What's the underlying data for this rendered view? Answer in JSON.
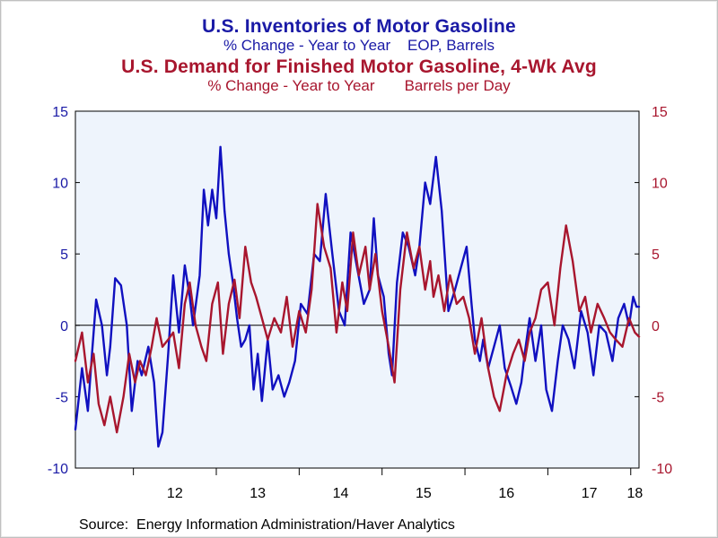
{
  "titles": {
    "title1": "U.S. Inventories of Motor Gasoline",
    "subtitle1": "% Change - Year to Year    EOP, Barrels",
    "title2": "U.S. Demand for Finished Motor Gasoline, 4-Wk Avg",
    "subtitle2": "% Change - Year to Year       Barrels per Day"
  },
  "source": "Source:  Energy Information Administration/Haver Analytics",
  "colors": {
    "inventories": "#1010c0",
    "demand": "#a8162e",
    "plot_background": "#eef4fc",
    "left_axis_text": "#1a1aa6",
    "right_axis_text": "#a8162e"
  },
  "chart_data": {
    "type": "line",
    "x_axis": {
      "tick_labels": [
        "12",
        "13",
        "14",
        "15",
        "16",
        "17",
        "18"
      ],
      "range": [
        2011.3,
        2018.1
      ]
    },
    "y_left": {
      "range": [
        -10,
        15
      ],
      "ticks": [
        "15",
        "10",
        "5",
        "0",
        "-5",
        "-10"
      ]
    },
    "y_right": {
      "range": [
        -10,
        15
      ],
      "ticks": [
        "15",
        "10",
        "5",
        "0",
        "-5",
        "-10"
      ]
    },
    "grid": false,
    "zero_line": true,
    "series": [
      {
        "name": "U.S. Inventories of Motor Gasoline",
        "axis": "left",
        "x": [
          2011.3,
          2011.38,
          2011.45,
          2011.5,
          2011.55,
          2011.62,
          2011.68,
          2011.72,
          2011.78,
          2011.85,
          2011.92,
          2011.98,
          2012.05,
          2012.1,
          2012.18,
          2012.25,
          2012.3,
          2012.35,
          2012.42,
          2012.48,
          2012.55,
          2012.62,
          2012.68,
          2012.72,
          2012.8,
          2012.85,
          2012.9,
          2012.95,
          2013.0,
          2013.05,
          2013.1,
          2013.15,
          2013.2,
          2013.25,
          2013.3,
          2013.35,
          2013.4,
          2013.45,
          2013.5,
          2013.55,
          2013.62,
          2013.68,
          2013.75,
          2013.82,
          2013.88,
          2013.95,
          2014.02,
          2014.1,
          2014.18,
          2014.25,
          2014.32,
          2014.4,
          2014.48,
          2014.55,
          2014.62,
          2014.7,
          2014.78,
          2014.85,
          2014.9,
          2014.95,
          2015.02,
          2015.08,
          2015.12,
          2015.18,
          2015.25,
          2015.32,
          2015.4,
          2015.45,
          2015.52,
          2015.58,
          2015.65,
          2015.72,
          2015.8,
          2015.88,
          2015.95,
          2016.02,
          2016.08,
          2016.12,
          2016.18,
          2016.22,
          2016.28,
          2016.35,
          2016.42,
          2016.48,
          2016.55,
          2016.62,
          2016.68,
          2016.72,
          2016.78,
          2016.85,
          2016.92,
          2016.98,
          2017.05,
          2017.12,
          2017.18,
          2017.25,
          2017.32,
          2017.4,
          2017.48,
          2017.55,
          2017.62,
          2017.7,
          2017.78,
          2017.85,
          2017.92,
          2017.98,
          2018.03,
          2018.07,
          2018.1
        ],
        "y": [
          -7.3,
          -3.0,
          -6.0,
          -2.0,
          1.8,
          0.0,
          -3.5,
          -1.5,
          3.3,
          2.8,
          0.0,
          -6.0,
          -2.5,
          -3.5,
          -1.5,
          -4.0,
          -8.5,
          -7.5,
          -2.0,
          3.5,
          -0.5,
          4.2,
          2.0,
          0.0,
          3.5,
          9.5,
          7.0,
          9.5,
          7.5,
          12.5,
          8.0,
          5.0,
          3.0,
          0.5,
          -1.5,
          -1.0,
          0.0,
          -4.5,
          -2.0,
          -5.3,
          -1.0,
          -4.5,
          -3.5,
          -5.0,
          -4.0,
          -2.5,
          1.5,
          0.8,
          5.0,
          4.5,
          9.2,
          5.0,
          1.0,
          0.0,
          6.5,
          4.0,
          1.5,
          2.5,
          7.5,
          3.5,
          2.0,
          -2.0,
          -3.5,
          3.0,
          6.5,
          5.5,
          3.5,
          5.5,
          10.0,
          8.5,
          11.8,
          8.0,
          1.0,
          2.5,
          4.0,
          5.5,
          1.5,
          -1.0,
          -2.5,
          -1.0,
          -3.0,
          -1.5,
          0.0,
          -3.0,
          -4.2,
          -5.5,
          -4.0,
          -2.0,
          0.5,
          -2.5,
          0.0,
          -4.5,
          -6.0,
          -2.5,
          0.0,
          -1.0,
          -3.0,
          1.0,
          -0.5,
          -3.5,
          0.0,
          -0.5,
          -2.5,
          0.5,
          1.5,
          0.0,
          2.0,
          1.3,
          1.3
        ]
      },
      {
        "name": "U.S. Demand for Finished Motor Gasoline, 4-Wk Avg",
        "axis": "right",
        "x": [
          2011.3,
          2011.38,
          2011.45,
          2011.52,
          2011.58,
          2011.65,
          2011.72,
          2011.8,
          2011.88,
          2011.95,
          2012.02,
          2012.08,
          2012.15,
          2012.22,
          2012.28,
          2012.35,
          2012.42,
          2012.48,
          2012.55,
          2012.62,
          2012.68,
          2012.75,
          2012.82,
          2012.88,
          2012.95,
          2013.02,
          2013.08,
          2013.15,
          2013.22,
          2013.28,
          2013.35,
          2013.42,
          2013.48,
          2013.55,
          2013.62,
          2013.7,
          2013.78,
          2013.85,
          2013.92,
          2014.0,
          2014.08,
          2014.15,
          2014.22,
          2014.3,
          2014.38,
          2014.45,
          2014.52,
          2014.58,
          2014.65,
          2014.72,
          2014.8,
          2014.85,
          2014.92,
          2015.0,
          2015.08,
          2015.15,
          2015.22,
          2015.3,
          2015.38,
          2015.45,
          2015.52,
          2015.58,
          2015.62,
          2015.68,
          2015.75,
          2015.82,
          2015.9,
          2015.98,
          2016.05,
          2016.12,
          2016.2,
          2016.28,
          2016.35,
          2016.42,
          2016.5,
          2016.58,
          2016.65,
          2016.72,
          2016.78,
          2016.85,
          2016.92,
          2017.0,
          2017.08,
          2017.15,
          2017.22,
          2017.3,
          2017.38,
          2017.45,
          2017.52,
          2017.6,
          2017.68,
          2017.75,
          2017.82,
          2017.9,
          2017.98,
          2018.05,
          2018.1
        ],
        "y": [
          -2.5,
          -0.5,
          -4.0,
          -2.0,
          -5.5,
          -7.0,
          -5.0,
          -7.5,
          -5.0,
          -2.0,
          -4.0,
          -2.5,
          -3.5,
          -1.5,
          0.5,
          -1.5,
          -1.0,
          -0.5,
          -3.0,
          1.5,
          3.0,
          0.0,
          -1.5,
          -2.5,
          1.5,
          3.0,
          -2.0,
          1.5,
          3.2,
          0.5,
          5.5,
          3.0,
          2.0,
          0.5,
          -1.0,
          0.5,
          -0.5,
          2.0,
          -1.5,
          1.0,
          -0.5,
          2.5,
          8.5,
          5.5,
          4.0,
          -0.5,
          3.0,
          1.0,
          6.5,
          3.5,
          5.5,
          2.5,
          5.0,
          1.0,
          -1.5,
          -4.0,
          2.5,
          6.5,
          4.0,
          5.5,
          2.5,
          4.5,
          2.0,
          3.5,
          1.0,
          3.5,
          1.5,
          2.0,
          0.5,
          -2.0,
          0.5,
          -3.0,
          -5.0,
          -6.0,
          -3.5,
          -2.0,
          -1.0,
          -2.5,
          -0.5,
          0.5,
          2.5,
          3.0,
          0.0,
          4.0,
          7.0,
          4.5,
          1.0,
          2.0,
          -0.5,
          1.5,
          0.5,
          -0.5,
          -1.0,
          -1.5,
          0.5,
          -0.5,
          -0.8
        ]
      }
    ]
  }
}
